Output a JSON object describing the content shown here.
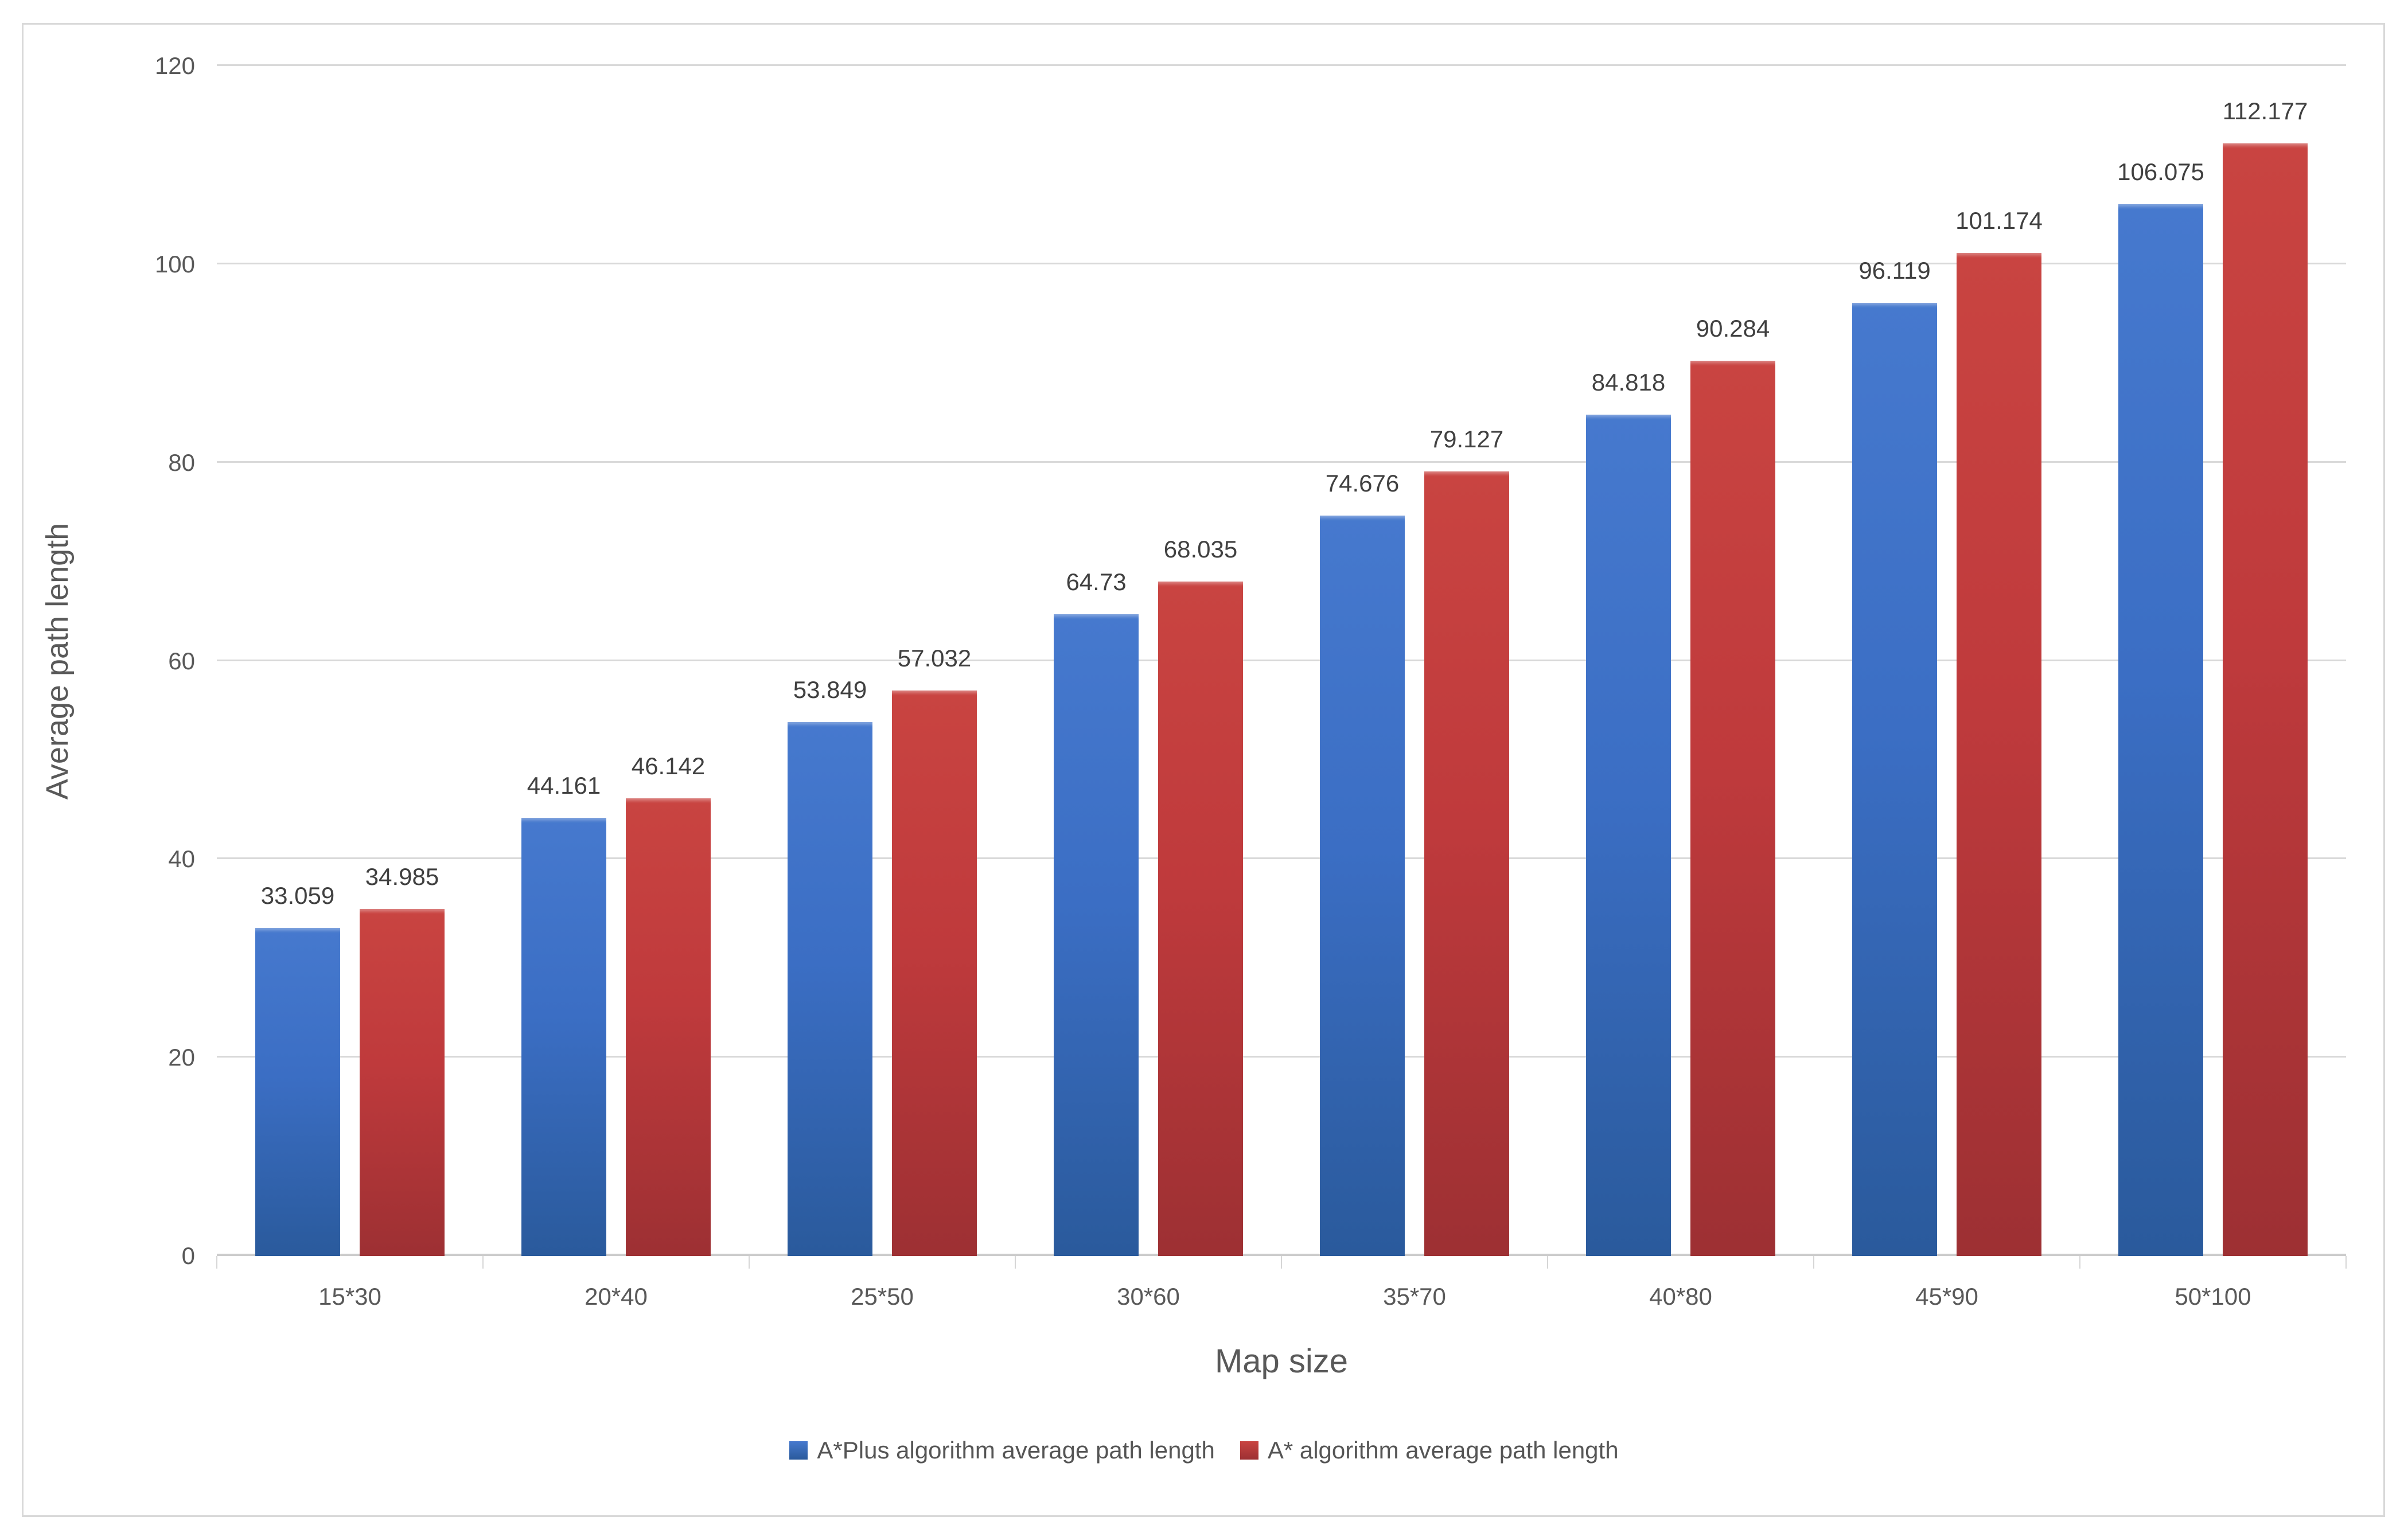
{
  "figure": {
    "background": "#ffffff",
    "panel_border_color": "#d9d9d9",
    "gridline_color": "#d9d9d9",
    "axis_text_color": "#595959",
    "data_label_color": "#404040"
  },
  "chart_data": {
    "type": "bar",
    "title": "",
    "categories": [
      "15*30",
      "20*40",
      "25*50",
      "30*60",
      "35*70",
      "40*80",
      "45*90",
      "50*100"
    ],
    "series": [
      {
        "name": "A*Plus algorithm average path length",
        "color": "#3b6ec4",
        "gradient_top": "#4679ce",
        "gradient_bottom": "#2a5a9c",
        "values": [
          33.059,
          44.161,
          53.849,
          64.73,
          74.676,
          84.818,
          96.119,
          106.075
        ]
      },
      {
        "name": "A* algorithm average path length",
        "color": "#bf3a3c",
        "gradient_top": "#c94441",
        "gradient_bottom": "#9d3033",
        "values": [
          34.985,
          46.142,
          57.032,
          68.035,
          79.127,
          90.284,
          101.174,
          112.177
        ]
      }
    ],
    "xlabel": "Map size",
    "ylabel": "Average path length",
    "ylim": [
      0,
      120
    ],
    "ytick_interval": 20,
    "yticks": [
      "0",
      "20",
      "40",
      "60",
      "80",
      "100",
      "120"
    ],
    "grid": true,
    "data_labels": true,
    "legend_position": "bottom"
  }
}
